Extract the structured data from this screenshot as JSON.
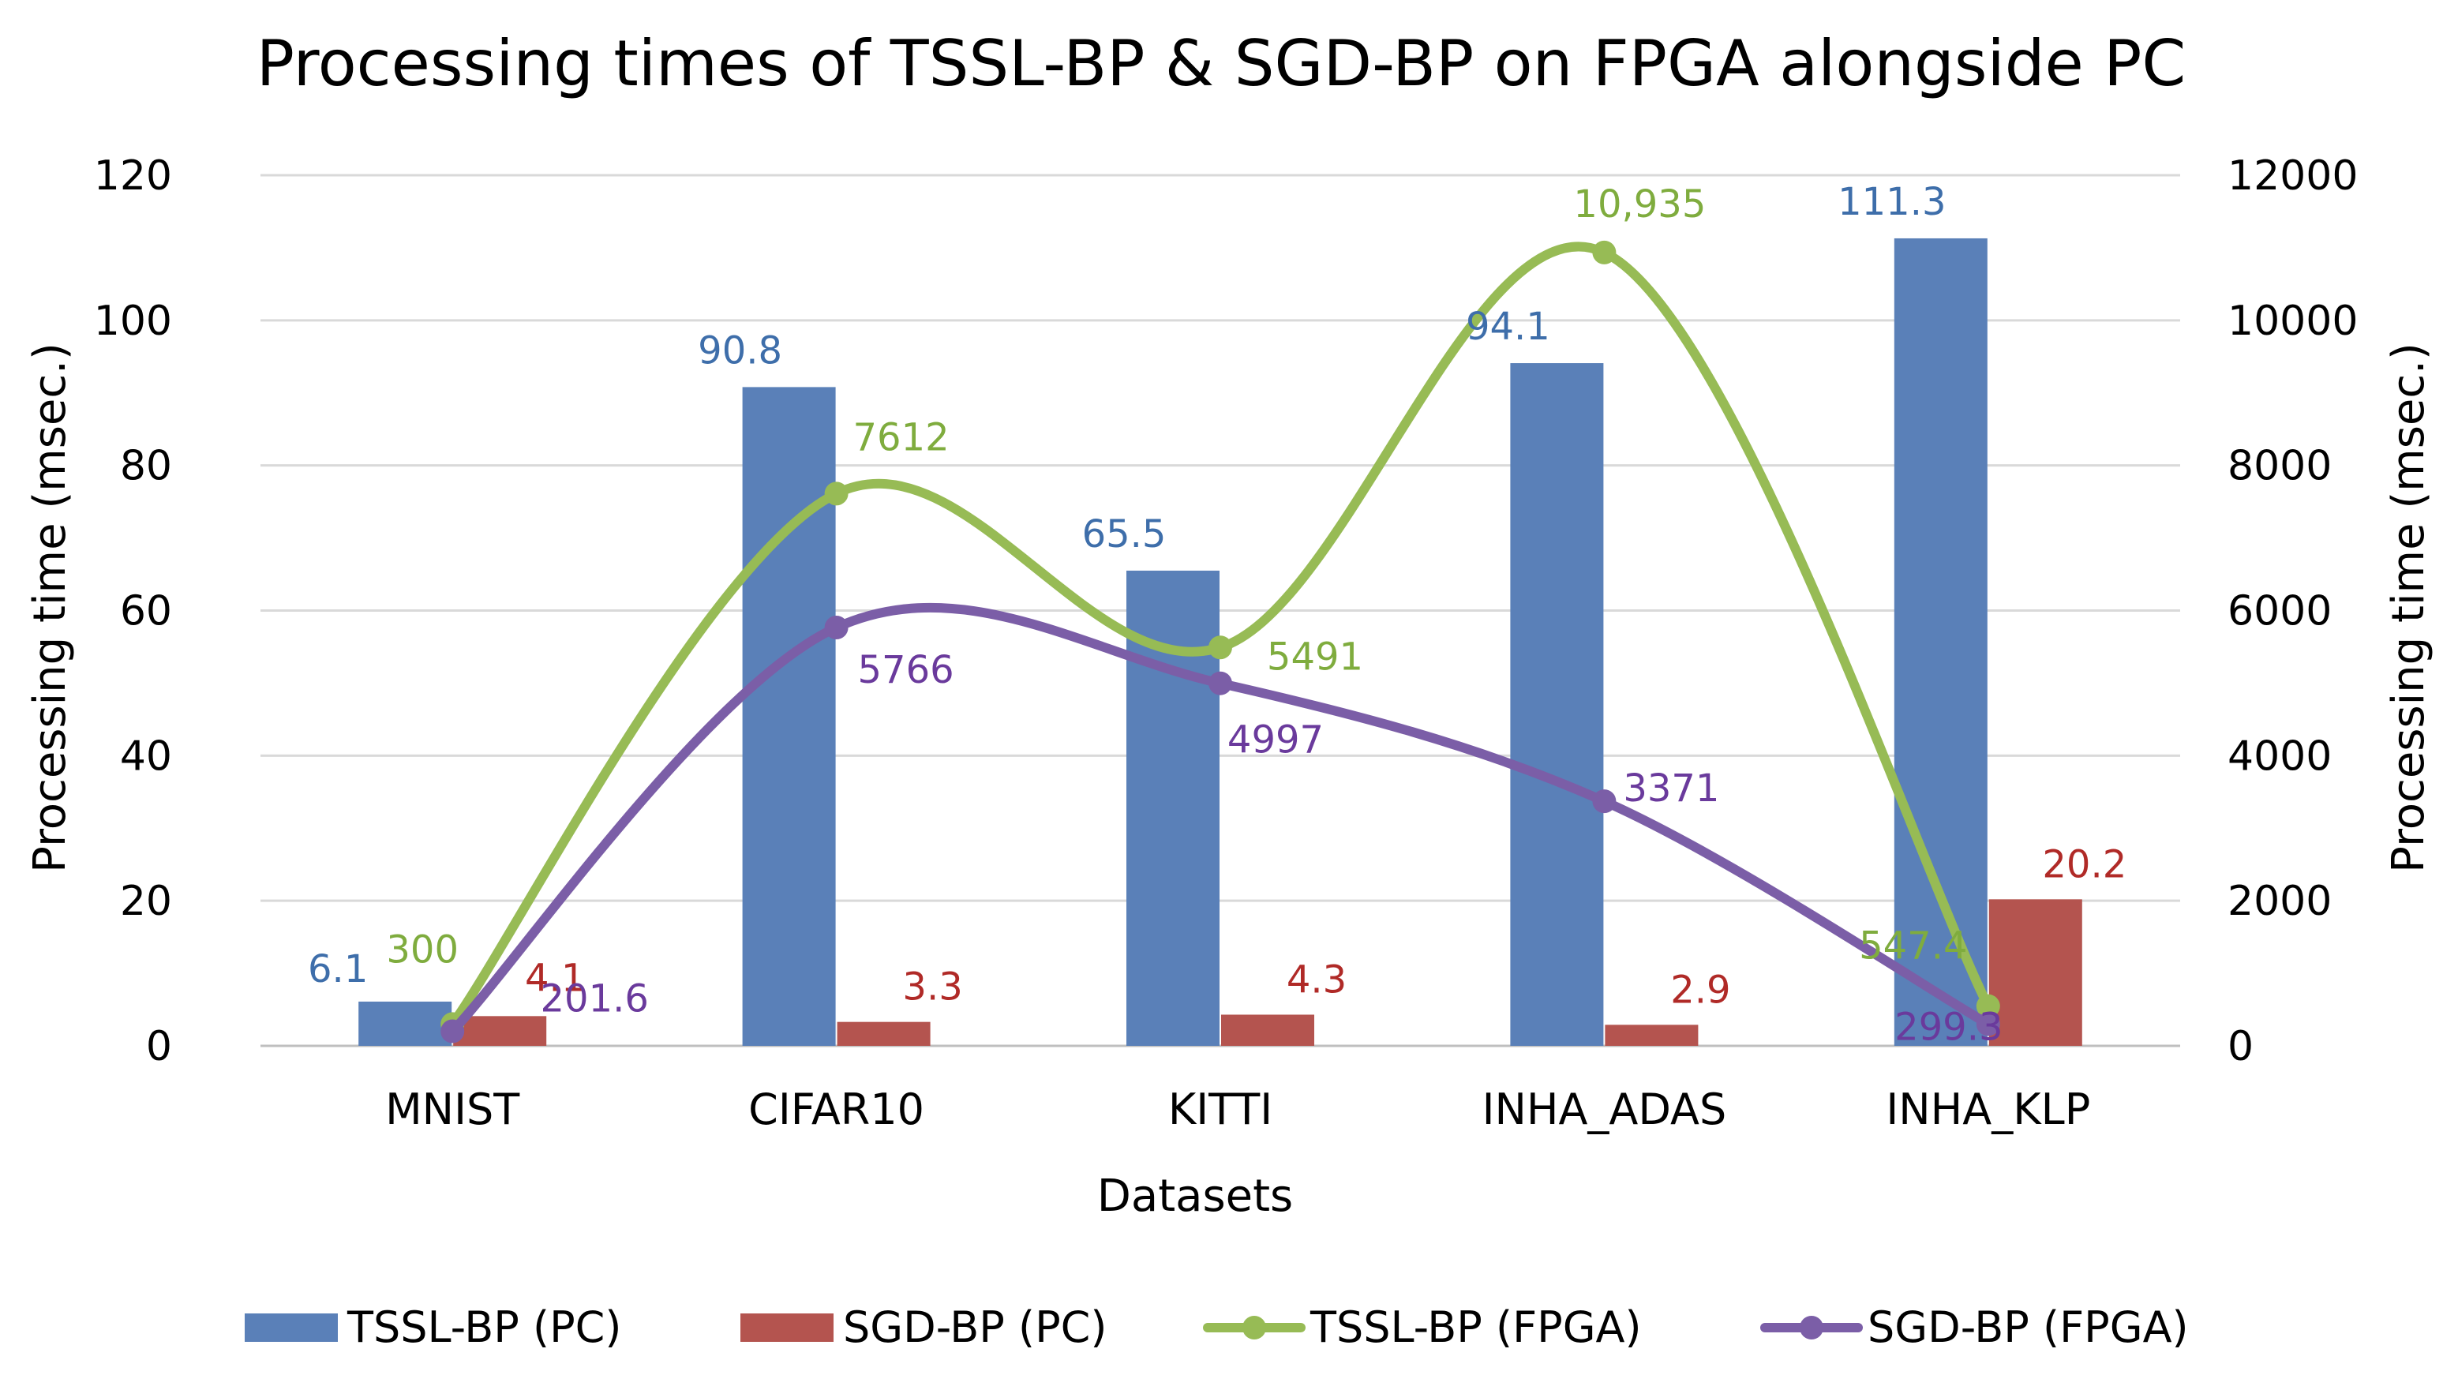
{
  "chart_data": {
    "type": "bar+line",
    "title": "Processing times of TSSL-BP & SGD-BP on FPGA alongside PC",
    "xlabel": "Datasets",
    "ylabel_left": "Processing time (msec.)",
    "ylabel_right": "Processing time (msec.)",
    "categories": [
      "MNIST",
      "CIFAR10",
      "KITTI",
      "INHA_ADAS",
      "INHA_KLP"
    ],
    "left_axis": {
      "min": 0,
      "max": 120,
      "ticks": [
        "0",
        "20",
        "40",
        "60",
        "80",
        "100",
        "120"
      ]
    },
    "right_axis": {
      "min": 0,
      "max": 12000,
      "ticks": [
        "0",
        "2000",
        "4000",
        "6000",
        "8000",
        "10000",
        "12000"
      ]
    },
    "gridlines": true,
    "legend_position": "bottom",
    "series": [
      {
        "name": "TSSL-BP (PC)",
        "kind": "bar",
        "axis": "left",
        "color": "#5a80b8",
        "values": [
          6.1,
          90.8,
          65.5,
          94.1,
          111.3
        ],
        "labels": [
          "6.1",
          "90.8",
          "65.5",
          "94.1",
          "111.3"
        ]
      },
      {
        "name": "SGD-BP (PC)",
        "kind": "bar",
        "axis": "left",
        "color": "#b4544f",
        "values": [
          4.1,
          3.3,
          4.3,
          2.9,
          20.2
        ],
        "labels": [
          "4.1",
          "3.3",
          "4.3",
          "2.9",
          "20.2"
        ]
      },
      {
        "name": "TSSL-BP (FPGA)",
        "kind": "line",
        "axis": "right",
        "color": "#97bb55",
        "values": [
          300,
          7612,
          5491,
          10935,
          547.4
        ],
        "labels": [
          "300",
          "7612",
          "5491",
          "10,935",
          "547.4"
        ]
      },
      {
        "name": "SGD-BP (FPGA)",
        "kind": "line",
        "axis": "right",
        "color": "#7b5ea7",
        "values": [
          201.6,
          5766,
          4997,
          3371,
          299.3
        ],
        "labels": [
          "201.6",
          "5766",
          "4997",
          "3371",
          "299.3"
        ]
      }
    ],
    "label_colors": [
      "#3e6eaa",
      "#b02a27",
      "#7fac3e",
      "#6a3a9c"
    ]
  }
}
